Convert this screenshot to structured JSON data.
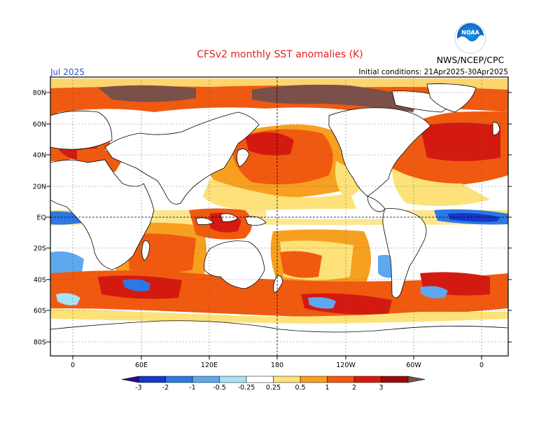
{
  "header": {
    "title": "CFSv2 monthly SST anomalies (K)",
    "month": "Jul 2025",
    "initial_conditions": "Initial conditions: 21Apr2025-30Apr2025",
    "organization": "NWS/NCEP/CPC",
    "logo_text": "NOAA"
  },
  "map": {
    "projection": "cylindrical equidistant",
    "center_longitude": 180,
    "grid": "dotted",
    "lat_labels": [
      "80N",
      "60N",
      "40N",
      "20N",
      "EQ",
      "20S",
      "40S",
      "60S",
      "80S"
    ],
    "lon_labels": [
      "0",
      "60E",
      "120E",
      "180",
      "120W",
      "60W",
      "0"
    ]
  },
  "colorbar": {
    "labels": [
      "-3",
      "-2",
      "-1",
      "-0.5",
      "-0.25",
      "0.25",
      "0.5",
      "1",
      "2",
      "3"
    ],
    "colors": [
      "#2a0a8c",
      "#1438c8",
      "#2e78e4",
      "#5ea8ee",
      "#a8e2f6",
      "#ffffff",
      "#fde27a",
      "#f7a01f",
      "#f05a10",
      "#d41a10",
      "#9a0a0a",
      "#7a5048"
    ]
  },
  "colors": {
    "land": "#ffffff",
    "ice_anomaly": "#7a5048",
    "title_red": "#e02020",
    "month_blue": "#3050c0"
  }
}
